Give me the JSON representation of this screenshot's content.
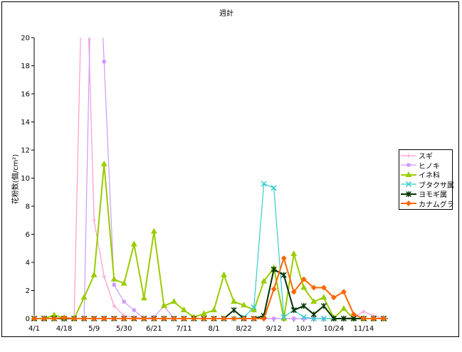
{
  "chart_data": {
    "type": "line",
    "title": "週計",
    "xlabel": "",
    "ylabel": "花粉数(個/cm²)",
    "ylim": [
      0,
      20
    ],
    "yticks": [
      "0",
      "2",
      "4",
      "6",
      "8",
      "10",
      "12",
      "14",
      "16",
      "18",
      "20"
    ],
    "xtick_labels": [
      {
        "i": 0,
        "label": "4/1"
      },
      {
        "i": 3,
        "label": "4/18"
      },
      {
        "i": 6,
        "label": "5/9"
      },
      {
        "i": 9,
        "label": "5/30"
      },
      {
        "i": 12,
        "label": "6/21"
      },
      {
        "i": 15,
        "label": "7/11"
      },
      {
        "i": 18,
        "label": "8/1"
      },
      {
        "i": 21,
        "label": "8/22"
      },
      {
        "i": 24,
        "label": "9/12"
      },
      {
        "i": 27,
        "label": "10/3"
      },
      {
        "i": 30,
        "label": "10/24"
      },
      {
        "i": 33,
        "label": "11/14"
      }
    ],
    "grid": false,
    "legend_position": "right",
    "series": [
      {
        "name": "スギ",
        "color": "#FF99CC",
        "marker": "plus",
        "values": [
          0,
          0,
          0,
          0,
          0,
          31,
          7,
          3,
          0.9,
          0.2,
          0.1,
          0,
          0,
          0,
          0,
          0,
          0,
          0,
          0,
          0,
          0,
          0,
          0,
          0,
          0,
          0,
          0,
          0,
          0,
          0,
          0,
          0,
          0.1,
          0.5,
          0.2,
          0
        ]
      },
      {
        "name": "ヒノキ",
        "color": "#CC99FF",
        "marker": "square",
        "values": [
          0,
          0,
          0,
          0,
          0,
          0,
          35,
          18.3,
          2.4,
          1.2,
          0.6,
          0,
          0.1,
          0.9,
          0,
          0,
          0,
          0,
          0,
          0,
          0,
          0,
          0,
          0,
          0,
          0,
          0,
          0,
          0,
          0,
          0,
          0,
          0,
          0,
          0,
          0
        ]
      },
      {
        "name": "イネ科",
        "color": "#99CC00",
        "marker": "triangle",
        "values": [
          0,
          0,
          0.25,
          0.05,
          0,
          1.5,
          3.1,
          11,
          2.8,
          2.5,
          5.3,
          1.45,
          6.2,
          0.9,
          1.2,
          0.6,
          0.1,
          0.35,
          0.6,
          3.1,
          1.2,
          0.95,
          0.6,
          2.65,
          3.6,
          0,
          4.6,
          2.2,
          1.2,
          1.5,
          0.05,
          0.7,
          0,
          0,
          0,
          0
        ]
      },
      {
        "name": "ブタクサ属",
        "color": "#33CCCC",
        "marker": "x",
        "values": [
          0,
          0,
          0,
          0,
          0,
          0,
          0,
          0,
          0,
          0,
          0,
          0,
          0,
          0,
          0,
          0,
          0,
          0,
          0,
          0,
          0,
          0.1,
          0.8,
          9.6,
          9.3,
          0.1,
          0.6,
          0.1,
          0,
          0,
          0,
          0,
          0,
          0,
          0,
          0
        ]
      },
      {
        "name": "ヨモギ属",
        "color": "#003300",
        "marker": "star",
        "values": [
          0,
          0,
          0,
          0,
          0,
          0,
          0,
          0,
          0,
          0,
          0,
          0,
          0,
          0,
          0,
          0,
          0,
          0,
          0,
          0,
          0.6,
          0,
          0,
          0.2,
          3.5,
          3.1,
          0.6,
          0.9,
          0.3,
          0.9,
          0,
          0,
          0,
          0,
          0,
          0
        ]
      },
      {
        "name": "カナムグラ",
        "color": "#FF6600",
        "marker": "diamond",
        "values": [
          0,
          0,
          0,
          0.05,
          0,
          0,
          0,
          0,
          0,
          0,
          0,
          0,
          0,
          0,
          0,
          0,
          0,
          0,
          0,
          0,
          0,
          0,
          0,
          0,
          2.1,
          4.3,
          1.9,
          2.8,
          2.2,
          2.2,
          1.5,
          1.9,
          0.3,
          0,
          0,
          0
        ]
      }
    ]
  }
}
